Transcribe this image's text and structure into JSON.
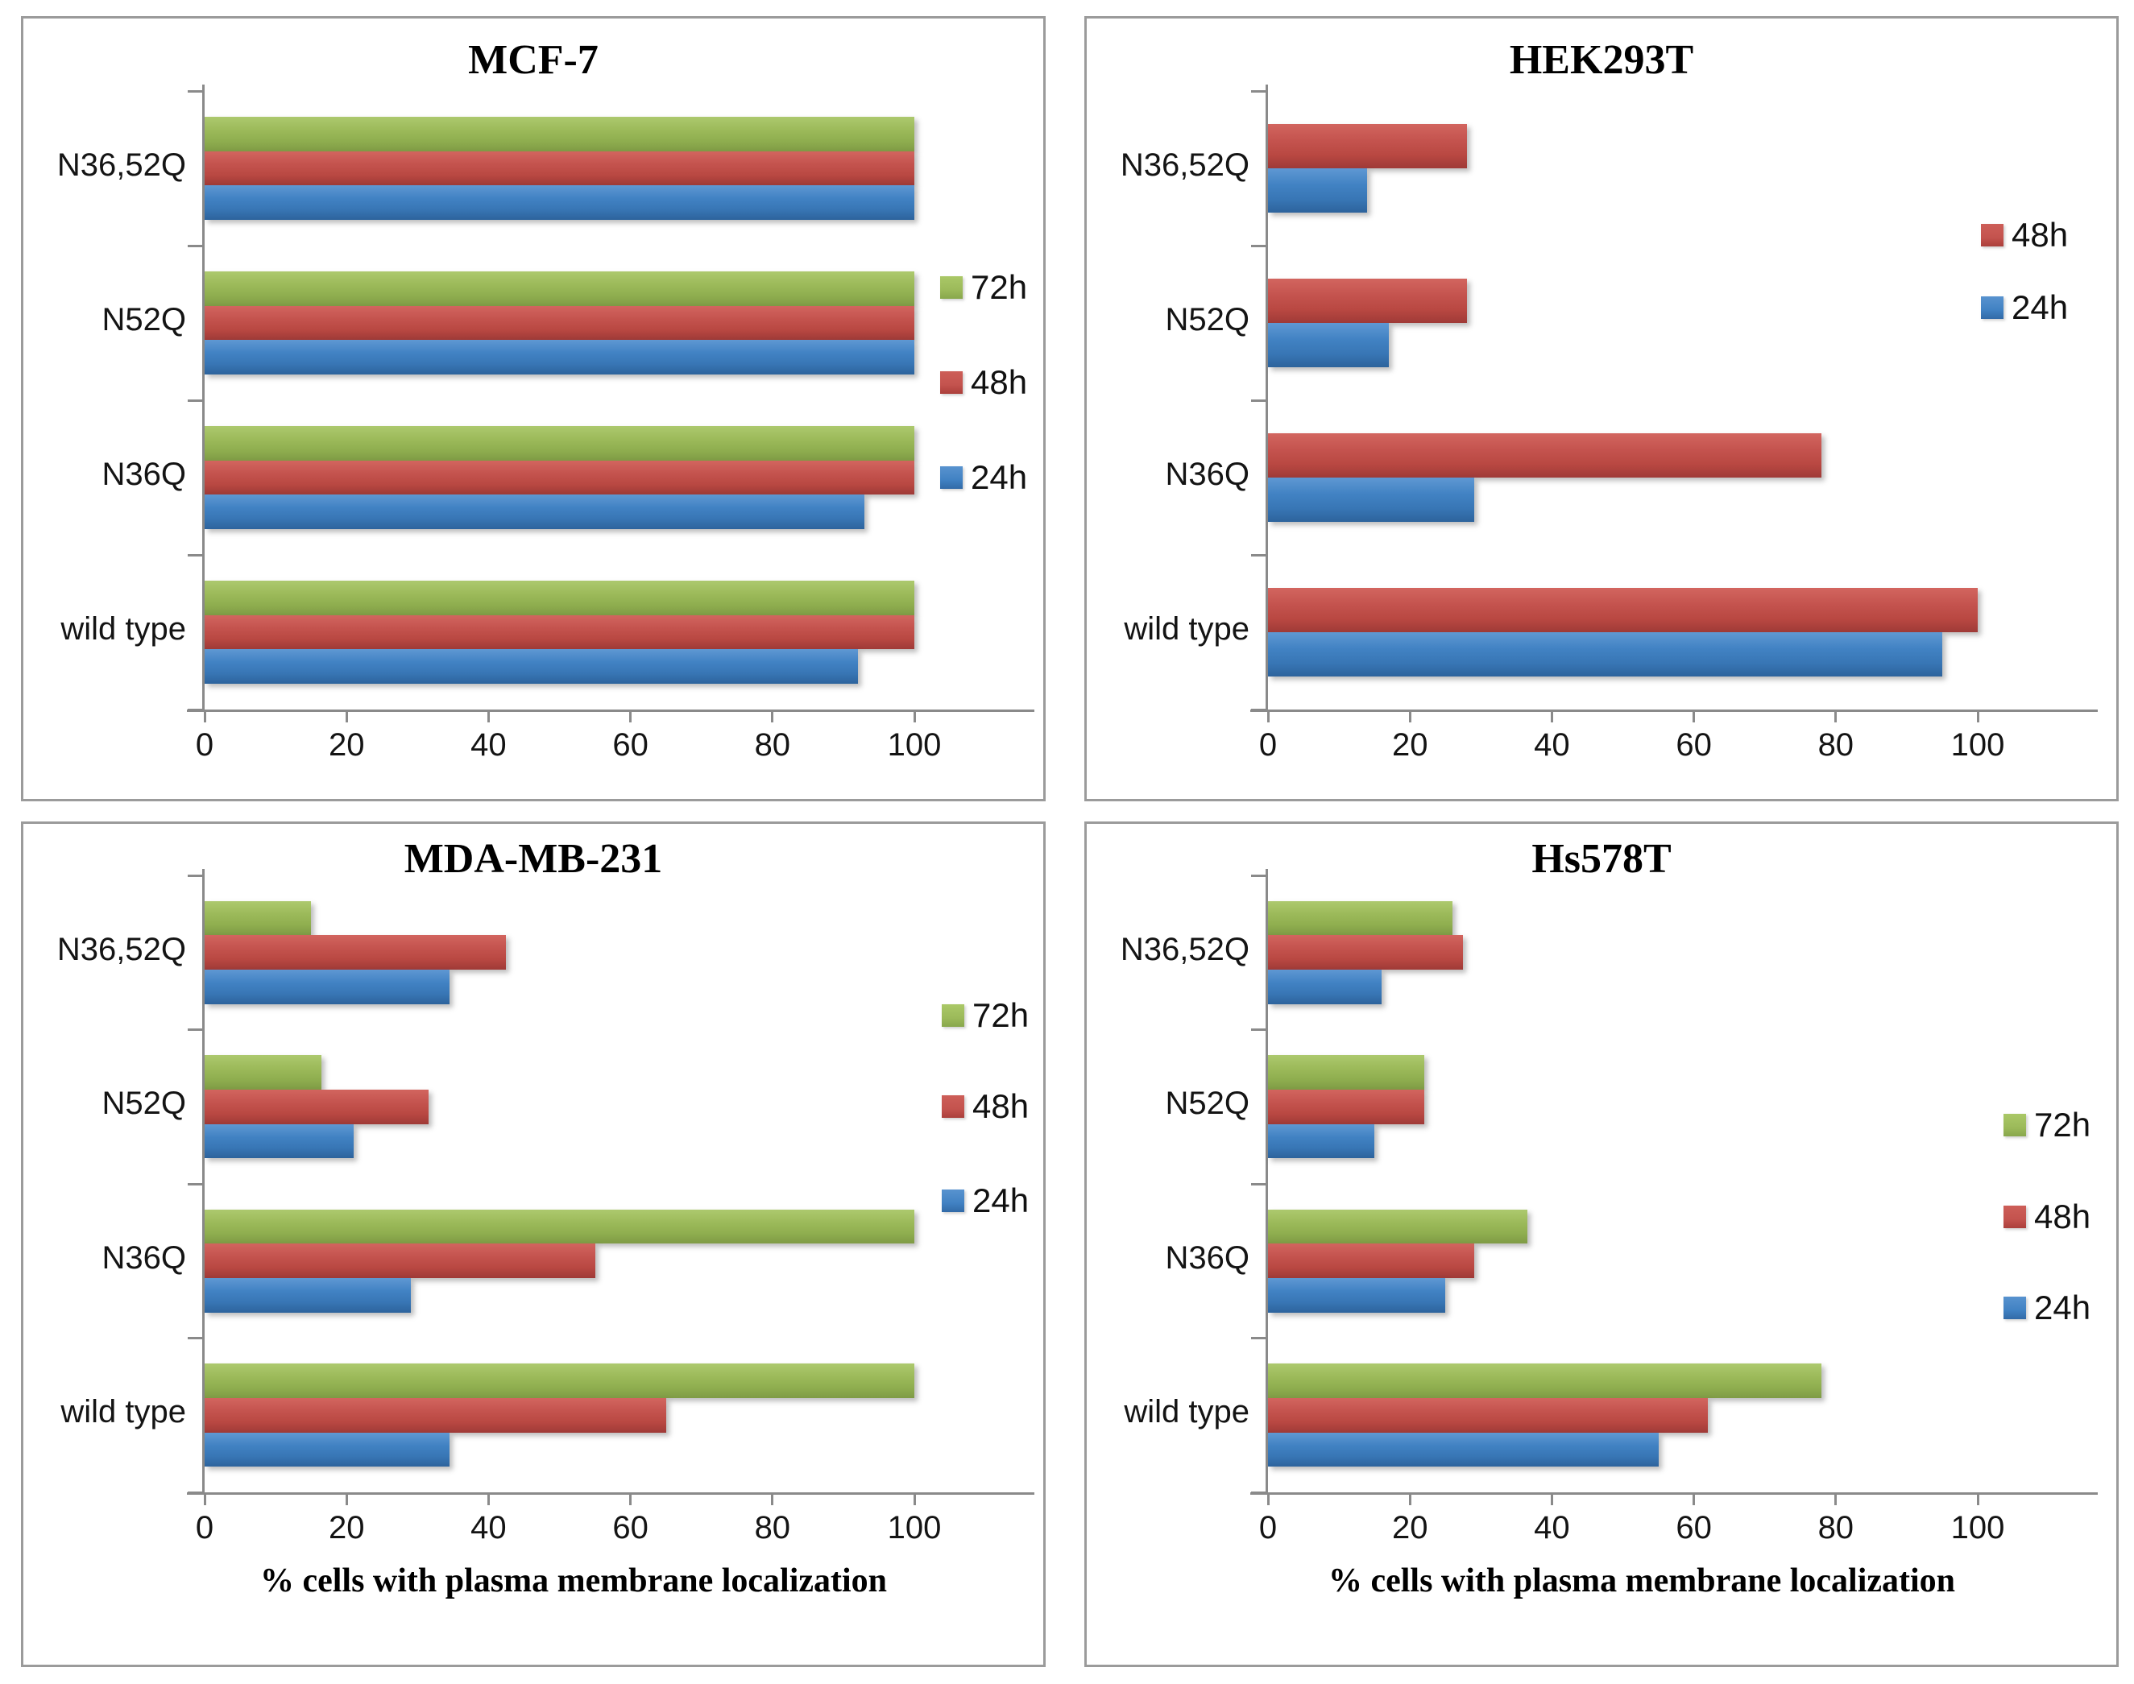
{
  "chart_data": [
    {
      "type": "bar",
      "orientation": "horizontal",
      "title": "MCF-7",
      "categories": [
        "N36,52Q",
        "N52Q",
        "N36Q",
        "wild type"
      ],
      "series": [
        {
          "name": "72h",
          "color": "#9bbb59",
          "values": [
            100,
            100,
            100,
            100
          ]
        },
        {
          "name": "48h",
          "color": "#c0504d",
          "values": [
            100,
            100,
            100,
            100
          ]
        },
        {
          "name": "24h",
          "color": "#4f81bd",
          "values": [
            100,
            100,
            93,
            92
          ]
        }
      ],
      "xlim": [
        0,
        116
      ],
      "xticks": [
        0,
        20,
        40,
        60,
        80,
        100
      ],
      "grid": false,
      "legend_position": "right-inside"
    },
    {
      "type": "bar",
      "orientation": "horizontal",
      "title": "HEK293T",
      "categories": [
        "N36,52Q",
        "N52Q",
        "N36Q",
        "wild type"
      ],
      "series": [
        {
          "name": "48h",
          "color": "#c0504d",
          "values": [
            28,
            28,
            78,
            100
          ]
        },
        {
          "name": "24h",
          "color": "#4f81bd",
          "values": [
            14,
            17,
            29,
            95
          ]
        }
      ],
      "xlim": [
        0,
        116
      ],
      "xticks": [
        0,
        20,
        40,
        60,
        80,
        100
      ],
      "grid": false,
      "legend_position": "right-inside"
    },
    {
      "type": "bar",
      "orientation": "horizontal",
      "title": "MDA-MB-231",
      "xlabel": "% cells with plasma membrane localization",
      "categories": [
        "N36,52Q",
        "N52Q",
        "N36Q",
        "wild type"
      ],
      "series": [
        {
          "name": "72h",
          "color": "#9bbb59",
          "values": [
            15,
            16.5,
            100,
            100
          ]
        },
        {
          "name": "48h",
          "color": "#c0504d",
          "values": [
            42.5,
            31.5,
            55,
            65
          ]
        },
        {
          "name": "24h",
          "color": "#4f81bd",
          "values": [
            34.5,
            21,
            29,
            34.5
          ]
        }
      ],
      "xlim": [
        0,
        116
      ],
      "xticks": [
        0,
        20,
        40,
        60,
        80,
        100
      ],
      "grid": false,
      "legend_position": "right-inside"
    },
    {
      "type": "bar",
      "orientation": "horizontal",
      "title": "Hs578T",
      "xlabel": "% cells with plasma membrane localization",
      "categories": [
        "N36,52Q",
        "N52Q",
        "N36Q",
        "wild type"
      ],
      "series": [
        {
          "name": "72h",
          "color": "#9bbb59",
          "values": [
            26,
            22,
            36.5,
            78
          ]
        },
        {
          "name": "48h",
          "color": "#c0504d",
          "values": [
            27.5,
            22,
            29,
            62
          ]
        },
        {
          "name": "24h",
          "color": "#4f81bd",
          "values": [
            16,
            15,
            25,
            55
          ]
        }
      ],
      "xlim": [
        0,
        116
      ],
      "xticks": [
        0,
        20,
        40,
        60,
        80,
        100
      ],
      "grid": false,
      "legend_position": "right-inside"
    }
  ]
}
